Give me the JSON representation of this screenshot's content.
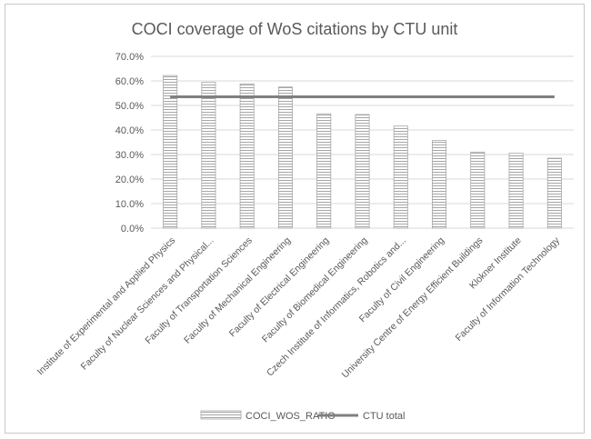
{
  "chart_data": {
    "type": "bar",
    "title": "COCI coverage of WoS citations by CTU unit",
    "categories": [
      "Institute of Experimental and Applied Physics",
      "Faculty of Nuclear Sciences and Physical...",
      "Faculty of Transportation Sciences",
      "Faculty of Mechanical Engineering",
      "Faculty of Electrical Engineering",
      "Faculty of Biomedical Engineering",
      "Czech Institute of Informatics, Robotics and...",
      "Faculty of Civil Engineering",
      "University Centre of Energy Efficient Buildings",
      "Klokner Institute",
      "Faculty of Information Technology"
    ],
    "series": [
      {
        "name": "COCI_WOS_RATIO",
        "type": "bar",
        "values": [
          62.2,
          59.4,
          58.8,
          57.5,
          46.6,
          46.3,
          41.6,
          35.7,
          31.0,
          30.5,
          28.5
        ]
      },
      {
        "name": "CTU total",
        "type": "line",
        "values": [
          53.5,
          53.5,
          53.5,
          53.5,
          53.5,
          53.5,
          53.5,
          53.5,
          53.5,
          53.5,
          53.5
        ]
      }
    ],
    "yticks": [
      "0.0%",
      "10.0%",
      "20.0%",
      "30.0%",
      "40.0%",
      "50.0%",
      "60.0%",
      "70.0%"
    ],
    "ylim": [
      0,
      70
    ],
    "grid": true,
    "legend": "bottom",
    "colors": {
      "bar_fill": "#ffffff",
      "bar_hatch": "#a6a6a6",
      "line": "#7f7f7f",
      "grid": "#d9d9d9",
      "text": "#595959"
    }
  }
}
